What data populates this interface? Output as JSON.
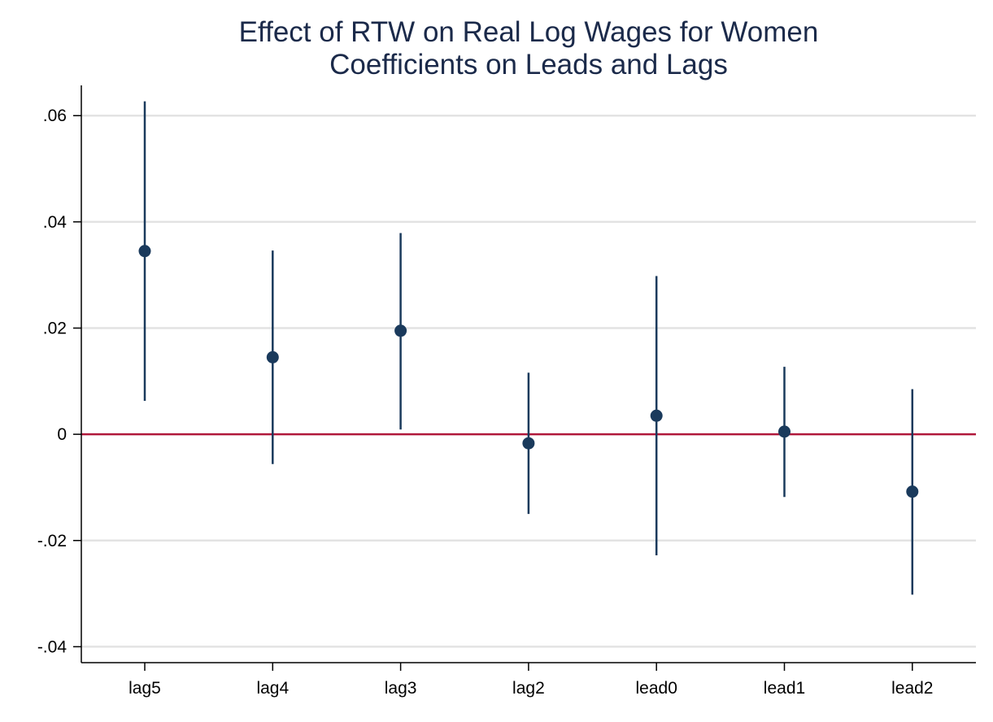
{
  "chart_data": {
    "type": "scatter",
    "title": "Effect of RTW on Real Log Wages for Women",
    "subtitle": "Coefficients on Leads and Lags",
    "xlabel": "",
    "ylabel": "",
    "categories": [
      "lag5",
      "lag4",
      "lag3",
      "lag2",
      "lead0",
      "lead1",
      "lead2"
    ],
    "series": [
      {
        "values": [
          0.0345,
          0.0145,
          0.0195,
          -0.0017,
          0.0035,
          0.0005,
          -0.0108
        ],
        "ci_low": [
          0.0063,
          -0.0056,
          0.0009,
          -0.015,
          -0.0228,
          -0.0118,
          -0.0302
        ],
        "ci_high": [
          0.0627,
          0.0346,
          0.0379,
          0.0116,
          0.0298,
          0.0127,
          0.0085
        ]
      }
    ],
    "yticks": [
      {
        "value": 0.06,
        "label": ".06"
      },
      {
        "value": 0.04,
        "label": ".04"
      },
      {
        "value": 0.02,
        "label": ".02"
      },
      {
        "value": 0,
        "label": "0"
      },
      {
        "value": -0.02,
        "label": "-.02"
      },
      {
        "value": -0.04,
        "label": "-.04"
      }
    ],
    "ylim": [
      -0.043,
      0.0657
    ],
    "reference_line": {
      "value": 0,
      "color": "#b0173a"
    },
    "grid": true,
    "colors": {
      "marker": "#1a3a5c",
      "gridline": "#e3e3e3",
      "axis": "#000000",
      "title": "#1b2a4a"
    }
  }
}
